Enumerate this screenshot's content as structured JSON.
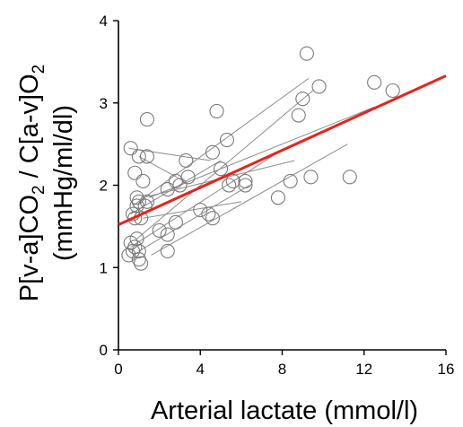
{
  "chart_data": {
    "type": "scatter",
    "xlabel": "Arterial lactate (mmol/l)",
    "ylabel": {
      "line1_parts": [
        "P[v-a]CO",
        "2",
        " / C[a-v]O",
        "2"
      ],
      "line2": "(mmHg/ml/dl)"
    },
    "xlim": [
      0,
      16
    ],
    "ylim": [
      0,
      4
    ],
    "x_ticks": [
      "0",
      "4",
      "8",
      "12",
      "16"
    ],
    "y_ticks": [
      "0",
      "1",
      "2",
      "3",
      "4"
    ],
    "grid": false,
    "points": [
      [
        0.5,
        1.15
      ],
      [
        0.6,
        1.3
      ],
      [
        0.7,
        1.2
      ],
      [
        0.8,
        1.25
      ],
      [
        0.9,
        1.35
      ],
      [
        1.0,
        1.1
      ],
      [
        1.1,
        1.05
      ],
      [
        1.0,
        1.2
      ],
      [
        0.8,
        1.6
      ],
      [
        0.7,
        1.65
      ],
      [
        0.9,
        1.75
      ],
      [
        0.9,
        1.85
      ],
      [
        1.0,
        1.8
      ],
      [
        1.1,
        1.6
      ],
      [
        1.3,
        1.75
      ],
      [
        1.4,
        1.8
      ],
      [
        0.8,
        2.15
      ],
      [
        1.2,
        2.05
      ],
      [
        1.0,
        2.35
      ],
      [
        1.4,
        2.35
      ],
      [
        0.6,
        2.45
      ],
      [
        1.4,
        2.8
      ],
      [
        2.0,
        1.45
      ],
      [
        2.4,
        1.4
      ],
      [
        2.4,
        1.2
      ],
      [
        2.8,
        1.55
      ],
      [
        2.4,
        1.95
      ],
      [
        2.8,
        2.05
      ],
      [
        3.0,
        2.0
      ],
      [
        3.4,
        2.1
      ],
      [
        3.3,
        2.3
      ],
      [
        4.0,
        1.7
      ],
      [
        4.4,
        1.65
      ],
      [
        4.6,
        1.6
      ],
      [
        4.6,
        2.4
      ],
      [
        4.8,
        2.9
      ],
      [
        5.0,
        2.2
      ],
      [
        5.3,
        2.55
      ],
      [
        5.4,
        2.0
      ],
      [
        5.6,
        2.05
      ],
      [
        6.2,
        2.0
      ],
      [
        6.2,
        2.05
      ],
      [
        7.8,
        1.85
      ],
      [
        8.4,
        2.05
      ],
      [
        8.8,
        2.85
      ],
      [
        9.0,
        3.05
      ],
      [
        9.4,
        2.1
      ],
      [
        9.2,
        3.6
      ],
      [
        9.8,
        3.2
      ],
      [
        11.3,
        2.1
      ],
      [
        12.5,
        3.25
      ],
      [
        13.4,
        3.15
      ]
    ],
    "subject_lines": [
      [
        [
          0.5,
          2.45
        ],
        [
          4.5,
          2.3
        ]
      ],
      [
        [
          0.6,
          1.25
        ],
        [
          7.8,
          2.4
        ]
      ],
      [
        [
          0.6,
          1.65
        ],
        [
          5.0,
          2.3
        ]
      ],
      [
        [
          0.7,
          1.75
        ],
        [
          9.3,
          3.3
        ]
      ],
      [
        [
          0.9,
          1.35
        ],
        [
          9.5,
          3.15
        ]
      ],
      [
        [
          1.0,
          1.2
        ],
        [
          6.4,
          2.0
        ]
      ],
      [
        [
          1.0,
          2.35
        ],
        [
          3.2,
          2.05
        ]
      ],
      [
        [
          1.2,
          1.85
        ],
        [
          8.6,
          2.3
        ]
      ],
      [
        [
          1.2,
          1.6
        ],
        [
          6.0,
          1.8
        ]
      ],
      [
        [
          1.6,
          1.15
        ],
        [
          11.2,
          2.5
        ]
      ],
      [
        [
          1.5,
          1.85
        ],
        [
          12.5,
          2.95
        ]
      ]
    ],
    "regression_line": {
      "points": [
        [
          0,
          1.52
        ],
        [
          16,
          3.33
        ]
      ],
      "color": "#e8231c"
    },
    "colors": {
      "markers": "#7a7a7a",
      "subject_lines": "#8c8c8c",
      "axes": "#000000"
    }
  }
}
